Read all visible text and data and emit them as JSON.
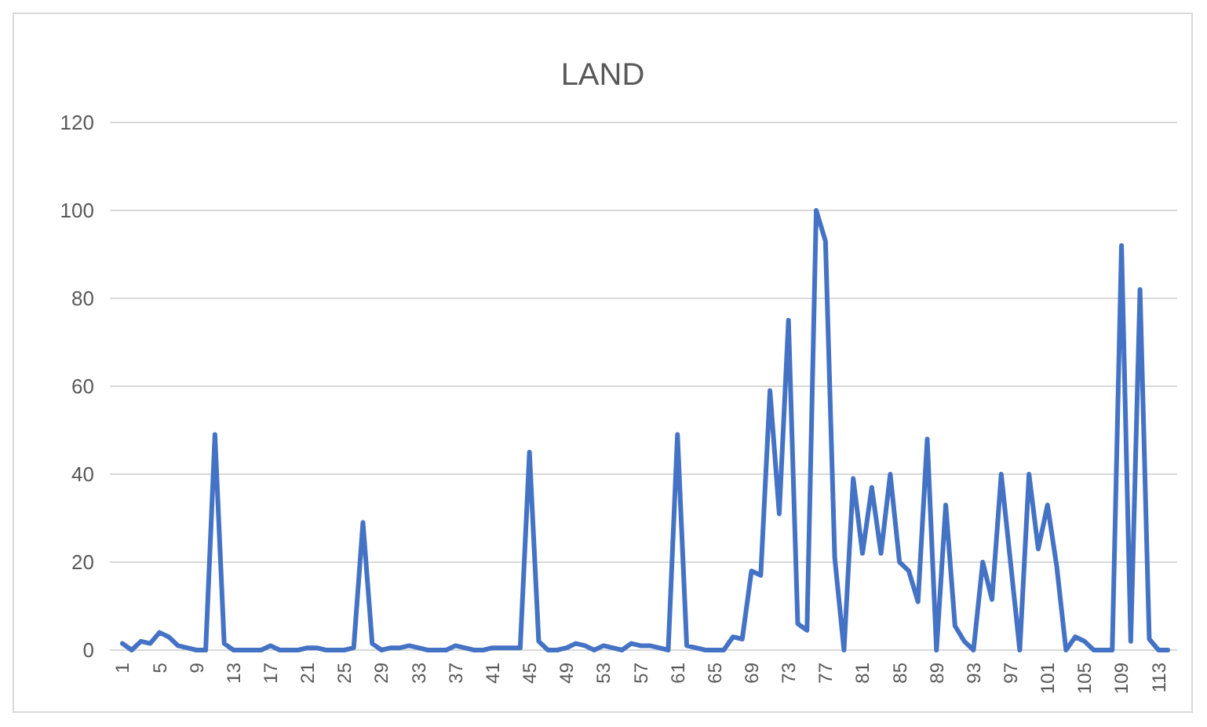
{
  "chart_data": {
    "type": "line",
    "title": "LAND",
    "categories": [
      "1",
      null,
      null,
      null,
      "5",
      null,
      null,
      null,
      "9",
      null,
      null,
      null,
      "13",
      null,
      null,
      null,
      "17",
      null,
      null,
      null,
      "21",
      null,
      null,
      null,
      "25",
      null,
      null,
      null,
      "29",
      null,
      null,
      null,
      "33",
      null,
      null,
      null,
      "37",
      null,
      null,
      null,
      "41",
      null,
      null,
      null,
      "45",
      null,
      null,
      null,
      "49",
      null,
      null,
      null,
      "53",
      null,
      null,
      null,
      "57",
      null,
      null,
      null,
      "61",
      null,
      null,
      null,
      "65",
      null,
      null,
      null,
      "69",
      null,
      null,
      null,
      "73",
      null,
      null,
      null,
      "77",
      null,
      null,
      null,
      "81",
      null,
      null,
      null,
      "85",
      null,
      null,
      null,
      "89",
      null,
      null,
      null,
      "93",
      null,
      null,
      null,
      "97",
      null,
      null,
      null,
      "101",
      null,
      null,
      null,
      "105",
      null,
      null,
      null,
      "109",
      null,
      null,
      null,
      "113",
      null
    ],
    "series": [
      {
        "color": "#4472c4",
        "values": [
          1.5,
          0,
          2,
          1.5,
          4,
          3,
          1,
          0.5,
          0,
          0,
          49,
          1.5,
          0,
          0,
          0,
          0,
          1,
          0,
          0,
          0,
          0.5,
          0.5,
          0,
          0,
          0,
          0.5,
          29,
          1.5,
          0,
          0.5,
          0.5,
          1,
          0.5,
          0,
          0,
          0,
          1,
          0.5,
          0,
          0,
          0.5,
          0.5,
          0.5,
          0.5,
          45,
          2,
          0,
          0,
          0.5,
          1.5,
          1,
          0,
          1,
          0.5,
          0,
          1.5,
          1,
          1,
          0.5,
          0,
          49,
          1,
          0.5,
          0,
          0,
          0,
          3,
          2.5,
          18,
          17,
          59,
          31,
          75,
          6,
          4.5,
          100,
          93,
          21,
          0,
          39,
          22,
          37,
          22,
          40,
          20,
          18,
          11,
          48,
          0,
          33,
          5.5,
          2,
          0,
          20,
          11.5,
          40,
          20,
          0,
          40,
          23,
          33,
          19,
          0,
          3,
          2,
          0,
          0,
          0,
          92,
          2,
          82,
          2.5,
          0,
          0
        ]
      }
    ],
    "ylim": [
      0,
      120
    ],
    "yticks": [
      0,
      20,
      40,
      60,
      80,
      100,
      120
    ],
    "grid": "y",
    "marker": "none",
    "line_style": "solid"
  }
}
